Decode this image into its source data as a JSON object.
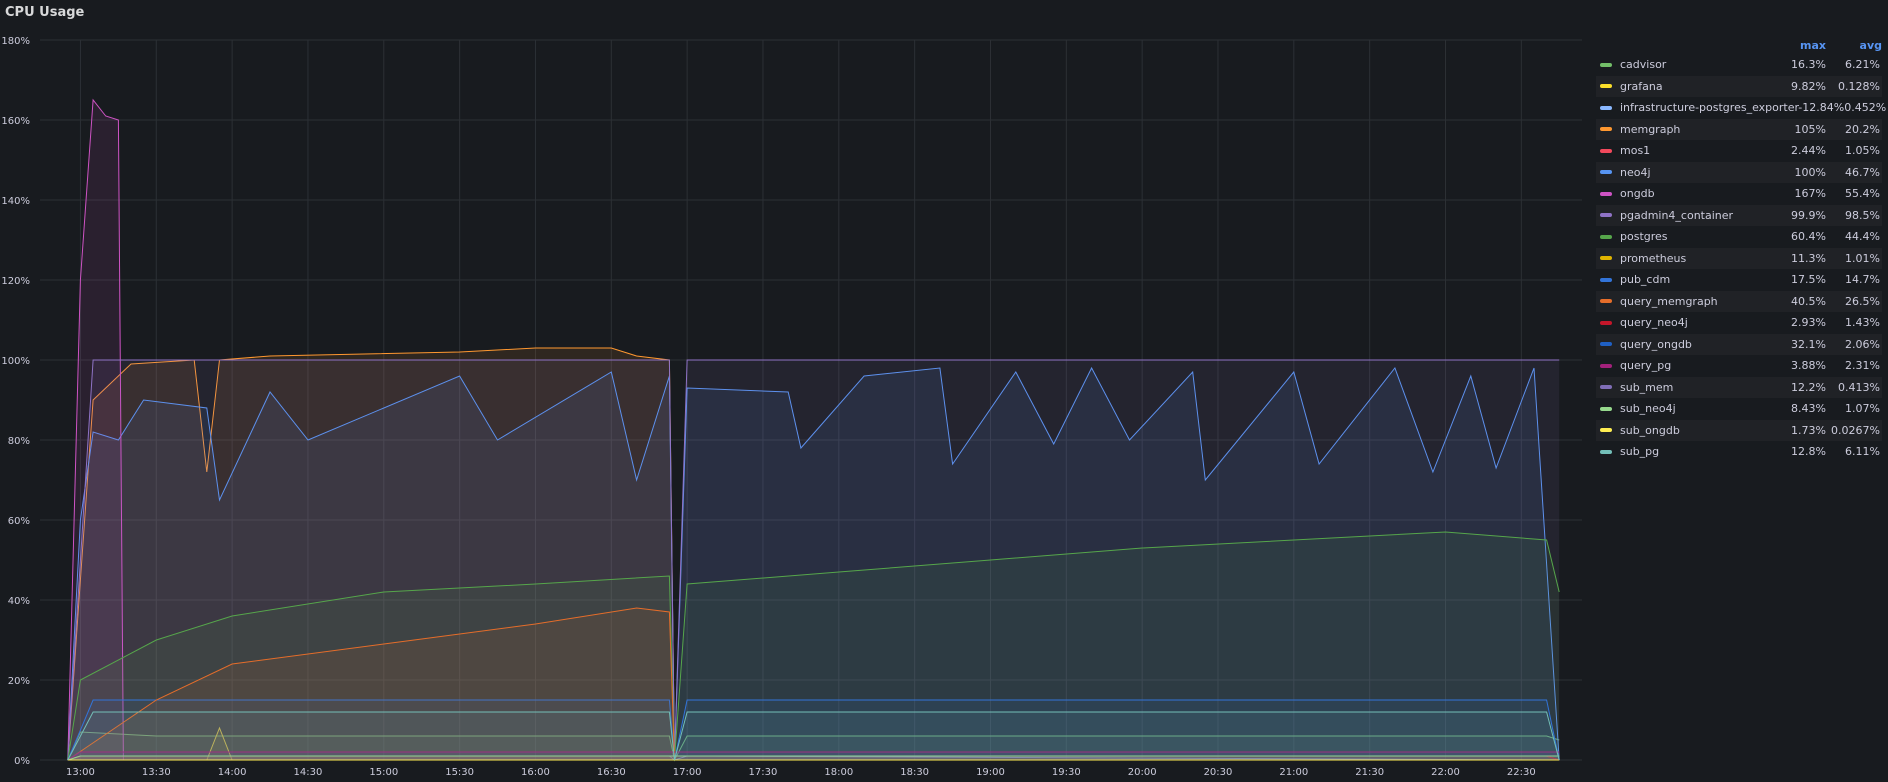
{
  "panel": {
    "title": "CPU Usage"
  },
  "legend": {
    "columns": [
      "max",
      "avg"
    ]
  },
  "chart_data": {
    "type": "area",
    "title": "CPU Usage",
    "y_unit": "%",
    "ylim": [
      0,
      180
    ],
    "y_ticks": [
      "0%",
      "20%",
      "40%",
      "60%",
      "80%",
      "100%",
      "120%",
      "140%",
      "160%",
      "180%"
    ],
    "x_ticks": [
      "13:00",
      "13:30",
      "14:00",
      "14:30",
      "15:00",
      "15:30",
      "16:00",
      "16:30",
      "17:00",
      "17:30",
      "18:00",
      "18:30",
      "19:00",
      "19:30",
      "20:00",
      "20:30",
      "21:00",
      "21:30",
      "22:00",
      "22:30"
    ],
    "grid": true,
    "legend_placement": "right",
    "series": [
      {
        "name": "cadvisor",
        "color": "#73bf69",
        "max": "16.3%",
        "avg": "6.21%",
        "points": [
          [
            "12:55",
            0
          ],
          [
            "13:00",
            7
          ],
          [
            "13:30",
            6
          ],
          [
            "16:40",
            6
          ],
          [
            "16:53",
            6
          ],
          [
            "16:55",
            0
          ],
          [
            "17:00",
            6
          ],
          [
            "22:40",
            6
          ],
          [
            "22:45",
            5
          ]
        ]
      },
      {
        "name": "grafana",
        "color": "#fade2a",
        "max": "9.82%",
        "avg": "0.128%",
        "points": [
          [
            "12:55",
            0
          ],
          [
            "13:50",
            0
          ],
          [
            "13:55",
            8
          ],
          [
            "14:00",
            0
          ],
          [
            "22:45",
            0
          ]
        ]
      },
      {
        "name": "infrastructure-postgres_exporter-1",
        "color": "#8ab8ff",
        "max": "2.84%",
        "avg": "0.452%",
        "points": [
          [
            "12:55",
            0
          ],
          [
            "13:00",
            1
          ],
          [
            "16:53",
            1
          ],
          [
            "16:55",
            0
          ],
          [
            "17:00",
            1
          ],
          [
            "22:45",
            0
          ]
        ]
      },
      {
        "name": "memgraph",
        "color": "#ff9830",
        "max": "105%",
        "avg": "20.2%",
        "points": [
          [
            "12:55",
            0
          ],
          [
            "13:00",
            45
          ],
          [
            "13:05",
            90
          ],
          [
            "13:20",
            99
          ],
          [
            "13:45",
            100
          ],
          [
            "13:50",
            72
          ],
          [
            "13:55",
            100
          ],
          [
            "14:15",
            101
          ],
          [
            "15:30",
            102
          ],
          [
            "16:00",
            103
          ],
          [
            "16:30",
            103
          ],
          [
            "16:40",
            101
          ],
          [
            "16:53",
            100
          ],
          [
            "16:55",
            0
          ],
          [
            "22:45",
            0
          ]
        ]
      },
      {
        "name": "mos1",
        "color": "#f2495c",
        "max": "2.44%",
        "avg": "1.05%",
        "points": [
          [
            "12:55",
            0
          ],
          [
            "13:00",
            1
          ],
          [
            "22:40",
            1
          ],
          [
            "22:45",
            0
          ]
        ]
      },
      {
        "name": "neo4j",
        "color": "#5794f2",
        "max": "100%",
        "avg": "46.7%",
        "points": [
          [
            "12:55",
            0
          ],
          [
            "13:00",
            60
          ],
          [
            "13:05",
            82
          ],
          [
            "13:15",
            80
          ],
          [
            "13:25",
            90
          ],
          [
            "13:50",
            88
          ],
          [
            "13:55",
            65
          ],
          [
            "14:15",
            92
          ],
          [
            "14:30",
            80
          ],
          [
            "15:30",
            96
          ],
          [
            "15:45",
            80
          ],
          [
            "16:30",
            97
          ],
          [
            "16:40",
            70
          ],
          [
            "16:53",
            96
          ],
          [
            "16:55",
            0
          ],
          [
            "17:00",
            93
          ],
          [
            "17:40",
            92
          ],
          [
            "17:45",
            78
          ],
          [
            "18:10",
            96
          ],
          [
            "18:40",
            98
          ],
          [
            "18:45",
            74
          ],
          [
            "19:10",
            97
          ],
          [
            "19:25",
            79
          ],
          [
            "19:40",
            98
          ],
          [
            "19:55",
            80
          ],
          [
            "20:20",
            97
          ],
          [
            "20:25",
            70
          ],
          [
            "21:00",
            97
          ],
          [
            "21:10",
            74
          ],
          [
            "21:40",
            98
          ],
          [
            "21:55",
            72
          ],
          [
            "22:10",
            96
          ],
          [
            "22:20",
            73
          ],
          [
            "22:35",
            98
          ],
          [
            "22:45",
            0
          ]
        ]
      },
      {
        "name": "ongdb",
        "color": "#ce53c4",
        "max": "167%",
        "avg": "55.4%",
        "points": [
          [
            "12:55",
            0
          ],
          [
            "13:00",
            120
          ],
          [
            "13:05",
            165
          ],
          [
            "13:10",
            161
          ],
          [
            "13:15",
            160
          ],
          [
            "13:17",
            0
          ],
          [
            "22:45",
            0
          ]
        ]
      },
      {
        "name": "pgadmin4_container",
        "color": "#8f73c6",
        "max": "99.9%",
        "avg": "98.5%",
        "points": [
          [
            "12:55",
            0
          ],
          [
            "13:05",
            100
          ],
          [
            "16:53",
            100
          ],
          [
            "16:55",
            0
          ],
          [
            "17:00",
            100
          ],
          [
            "22:45",
            100
          ]
        ]
      },
      {
        "name": "postgres",
        "color": "#56a64b",
        "max": "60.4%",
        "avg": "44.4%",
        "points": [
          [
            "12:55",
            0
          ],
          [
            "13:00",
            20
          ],
          [
            "13:30",
            30
          ],
          [
            "14:00",
            36
          ],
          [
            "15:00",
            42
          ],
          [
            "16:00",
            44
          ],
          [
            "16:53",
            46
          ],
          [
            "16:55",
            0
          ],
          [
            "17:00",
            44
          ],
          [
            "18:00",
            47
          ],
          [
            "19:00",
            50
          ],
          [
            "20:00",
            53
          ],
          [
            "21:00",
            55
          ],
          [
            "22:00",
            57
          ],
          [
            "22:40",
            55
          ],
          [
            "22:45",
            42
          ]
        ]
      },
      {
        "name": "prometheus",
        "color": "#e0b400",
        "max": "11.3%",
        "avg": "1.01%",
        "points": [
          [
            "12:55",
            0
          ],
          [
            "13:00",
            1
          ],
          [
            "22:45",
            1
          ]
        ]
      },
      {
        "name": "pub_cdm",
        "color": "#3274d9",
        "max": "17.5%",
        "avg": "14.7%",
        "points": [
          [
            "12:55",
            0
          ],
          [
            "13:05",
            15
          ],
          [
            "16:53",
            15
          ],
          [
            "16:55",
            0
          ],
          [
            "17:00",
            15
          ],
          [
            "22:40",
            15
          ],
          [
            "22:45",
            0
          ]
        ]
      },
      {
        "name": "query_memgraph",
        "color": "#e56d2a",
        "max": "40.5%",
        "avg": "26.5%",
        "points": [
          [
            "12:55",
            0
          ],
          [
            "13:30",
            15
          ],
          [
            "14:00",
            24
          ],
          [
            "15:00",
            29
          ],
          [
            "16:00",
            34
          ],
          [
            "16:40",
            38
          ],
          [
            "16:53",
            37
          ],
          [
            "16:55",
            0
          ],
          [
            "22:45",
            0
          ]
        ]
      },
      {
        "name": "query_neo4j",
        "color": "#c4162a",
        "max": "2.93%",
        "avg": "1.43%",
        "points": [
          [
            "12:55",
            0
          ],
          [
            "13:00",
            1
          ],
          [
            "22:40",
            1
          ],
          [
            "22:45",
            0
          ]
        ]
      },
      {
        "name": "query_ongdb",
        "color": "#1f60c4",
        "max": "32.1%",
        "avg": "2.06%",
        "points": [
          [
            "12:55",
            0
          ],
          [
            "13:00",
            2
          ],
          [
            "22:45",
            2
          ]
        ]
      },
      {
        "name": "query_pg",
        "color": "#a3217b",
        "max": "3.88%",
        "avg": "2.31%",
        "points": [
          [
            "12:55",
            0
          ],
          [
            "13:00",
            2
          ],
          [
            "22:45",
            2
          ]
        ]
      },
      {
        "name": "sub_mem",
        "color": "#806eb7",
        "max": "12.2%",
        "avg": "0.413%",
        "points": [
          [
            "12:55",
            0
          ],
          [
            "13:00",
            0
          ],
          [
            "22:45",
            0
          ]
        ]
      },
      {
        "name": "sub_neo4j",
        "color": "#96d98d",
        "max": "8.43%",
        "avg": "1.07%",
        "points": [
          [
            "12:55",
            0
          ],
          [
            "13:00",
            1
          ],
          [
            "22:45",
            1
          ]
        ]
      },
      {
        "name": "sub_ongdb",
        "color": "#ffee52",
        "max": "1.73%",
        "avg": "0.0267%",
        "points": [
          [
            "12:55",
            0
          ],
          [
            "22:45",
            0
          ]
        ]
      },
      {
        "name": "sub_pg",
        "color": "#73bfb8",
        "max": "12.8%",
        "avg": "6.11%",
        "points": [
          [
            "12:55",
            0
          ],
          [
            "13:05",
            12
          ],
          [
            "16:53",
            12
          ],
          [
            "16:55",
            0
          ],
          [
            "17:00",
            12
          ],
          [
            "22:40",
            12
          ],
          [
            "22:45",
            0
          ]
        ]
      }
    ]
  }
}
